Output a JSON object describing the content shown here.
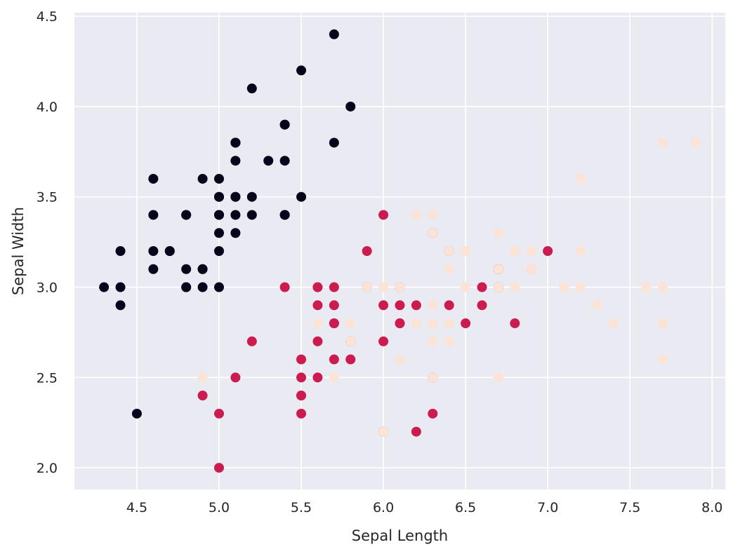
{
  "chart_data": {
    "type": "scatter",
    "title": "",
    "xlabel": "Sepal Length",
    "ylabel": "Sepal Width",
    "xlim": [
      4.12,
      8.08
    ],
    "ylim": [
      1.88,
      4.52
    ],
    "x_ticks": [
      4.5,
      5.0,
      5.5,
      6.0,
      6.5,
      7.0,
      7.5,
      8.0
    ],
    "x_tick_labels": [
      "4.5",
      "5.0",
      "5.5",
      "6.0",
      "6.5",
      "7.0",
      "7.5",
      "8.0"
    ],
    "y_ticks": [
      2.0,
      2.5,
      3.0,
      3.5,
      4.0,
      4.5
    ],
    "y_tick_labels": [
      "2.0",
      "2.5",
      "3.0",
      "3.5",
      "4.0",
      "4.5"
    ],
    "grid": true,
    "background_color": "#eaeaf2",
    "grid_color": "#ffffff",
    "series": [
      {
        "color": "#03051a",
        "points": [
          [
            5.1,
            3.5
          ],
          [
            4.9,
            3.0
          ],
          [
            4.7,
            3.2
          ],
          [
            4.6,
            3.1
          ],
          [
            5.0,
            3.6
          ],
          [
            5.4,
            3.9
          ],
          [
            4.6,
            3.4
          ],
          [
            5.0,
            3.4
          ],
          [
            4.4,
            2.9
          ],
          [
            4.9,
            3.1
          ],
          [
            5.4,
            3.7
          ],
          [
            4.8,
            3.4
          ],
          [
            4.8,
            3.0
          ],
          [
            4.3,
            3.0
          ],
          [
            5.8,
            4.0
          ],
          [
            5.7,
            4.4
          ],
          [
            5.4,
            3.9
          ],
          [
            5.1,
            3.5
          ],
          [
            5.7,
            3.8
          ],
          [
            5.1,
            3.8
          ],
          [
            5.4,
            3.4
          ],
          [
            5.1,
            3.7
          ],
          [
            4.6,
            3.6
          ],
          [
            5.1,
            3.3
          ],
          [
            4.8,
            3.4
          ],
          [
            5.0,
            3.0
          ],
          [
            5.0,
            3.4
          ],
          [
            5.2,
            3.5
          ],
          [
            5.2,
            3.4
          ],
          [
            4.7,
            3.2
          ],
          [
            4.8,
            3.1
          ],
          [
            5.4,
            3.4
          ],
          [
            5.2,
            4.1
          ],
          [
            5.5,
            4.2
          ],
          [
            4.9,
            3.1
          ],
          [
            5.0,
            3.2
          ],
          [
            5.5,
            3.5
          ],
          [
            4.9,
            3.6
          ],
          [
            4.4,
            3.0
          ],
          [
            5.1,
            3.4
          ],
          [
            5.0,
            3.5
          ],
          [
            4.5,
            2.3
          ],
          [
            4.4,
            3.2
          ],
          [
            5.0,
            3.5
          ],
          [
            5.1,
            3.8
          ],
          [
            4.8,
            3.0
          ],
          [
            5.1,
            3.8
          ],
          [
            4.6,
            3.2
          ],
          [
            5.3,
            3.7
          ],
          [
            5.0,
            3.3
          ]
        ]
      },
      {
        "color": "#cb1b4f",
        "points": [
          [
            7.0,
            3.2
          ],
          [
            6.4,
            3.2
          ],
          [
            6.9,
            3.1
          ],
          [
            5.5,
            2.3
          ],
          [
            6.5,
            2.8
          ],
          [
            5.7,
            2.8
          ],
          [
            6.3,
            3.3
          ],
          [
            4.9,
            2.4
          ],
          [
            6.6,
            2.9
          ],
          [
            5.2,
            2.7
          ],
          [
            5.0,
            2.0
          ],
          [
            5.9,
            3.0
          ],
          [
            6.0,
            2.2
          ],
          [
            6.1,
            2.9
          ],
          [
            5.6,
            2.9
          ],
          [
            6.7,
            3.1
          ],
          [
            5.6,
            3.0
          ],
          [
            5.8,
            2.7
          ],
          [
            6.2,
            2.2
          ],
          [
            5.6,
            2.5
          ],
          [
            5.9,
            3.2
          ],
          [
            6.1,
            2.8
          ],
          [
            6.3,
            2.5
          ],
          [
            6.1,
            2.8
          ],
          [
            6.4,
            2.9
          ],
          [
            6.6,
            3.0
          ],
          [
            6.8,
            2.8
          ],
          [
            6.7,
            3.0
          ],
          [
            6.0,
            2.9
          ],
          [
            5.7,
            2.6
          ],
          [
            5.5,
            2.4
          ],
          [
            5.5,
            2.4
          ],
          [
            5.8,
            2.7
          ],
          [
            6.0,
            2.7
          ],
          [
            5.4,
            3.0
          ],
          [
            6.0,
            3.4
          ],
          [
            6.7,
            3.1
          ],
          [
            6.3,
            2.3
          ],
          [
            5.6,
            3.0
          ],
          [
            5.5,
            2.5
          ],
          [
            5.5,
            2.6
          ],
          [
            6.1,
            3.0
          ],
          [
            5.8,
            2.6
          ],
          [
            5.0,
            2.3
          ],
          [
            5.6,
            2.7
          ],
          [
            5.7,
            3.0
          ],
          [
            5.7,
            2.9
          ],
          [
            6.2,
            2.9
          ],
          [
            5.1,
            2.5
          ],
          [
            5.7,
            2.8
          ]
        ]
      },
      {
        "color": "#fbe4d5",
        "points": [
          [
            6.3,
            3.3
          ],
          [
            5.8,
            2.7
          ],
          [
            7.1,
            3.0
          ],
          [
            6.3,
            2.9
          ],
          [
            6.5,
            3.0
          ],
          [
            7.6,
            3.0
          ],
          [
            4.9,
            2.5
          ],
          [
            7.3,
            2.9
          ],
          [
            6.7,
            2.5
          ],
          [
            7.2,
            3.6
          ],
          [
            6.5,
            3.2
          ],
          [
            6.4,
            2.7
          ],
          [
            6.8,
            3.0
          ],
          [
            5.7,
            2.5
          ],
          [
            5.8,
            2.8
          ],
          [
            6.4,
            3.2
          ],
          [
            6.5,
            3.0
          ],
          [
            7.7,
            3.8
          ],
          [
            7.7,
            2.6
          ],
          [
            6.0,
            2.2
          ],
          [
            6.9,
            3.2
          ],
          [
            5.6,
            2.8
          ],
          [
            7.7,
            2.8
          ],
          [
            6.3,
            2.7
          ],
          [
            6.7,
            3.3
          ],
          [
            7.2,
            3.2
          ],
          [
            6.2,
            2.8
          ],
          [
            6.1,
            3.0
          ],
          [
            6.4,
            2.8
          ],
          [
            7.2,
            3.0
          ],
          [
            7.4,
            2.8
          ],
          [
            7.9,
            3.8
          ],
          [
            6.4,
            2.8
          ],
          [
            6.3,
            2.8
          ],
          [
            6.1,
            2.6
          ],
          [
            7.7,
            3.0
          ],
          [
            6.3,
            3.4
          ],
          [
            6.4,
            3.1
          ],
          [
            6.0,
            3.0
          ],
          [
            6.9,
            3.1
          ],
          [
            6.7,
            3.1
          ],
          [
            6.9,
            3.1
          ],
          [
            5.8,
            2.7
          ],
          [
            6.8,
            3.2
          ],
          [
            6.7,
            3.3
          ],
          [
            6.7,
            3.0
          ],
          [
            6.3,
            2.5
          ],
          [
            6.5,
            3.0
          ],
          [
            6.2,
            3.4
          ],
          [
            5.9,
            3.0
          ]
        ]
      }
    ]
  }
}
